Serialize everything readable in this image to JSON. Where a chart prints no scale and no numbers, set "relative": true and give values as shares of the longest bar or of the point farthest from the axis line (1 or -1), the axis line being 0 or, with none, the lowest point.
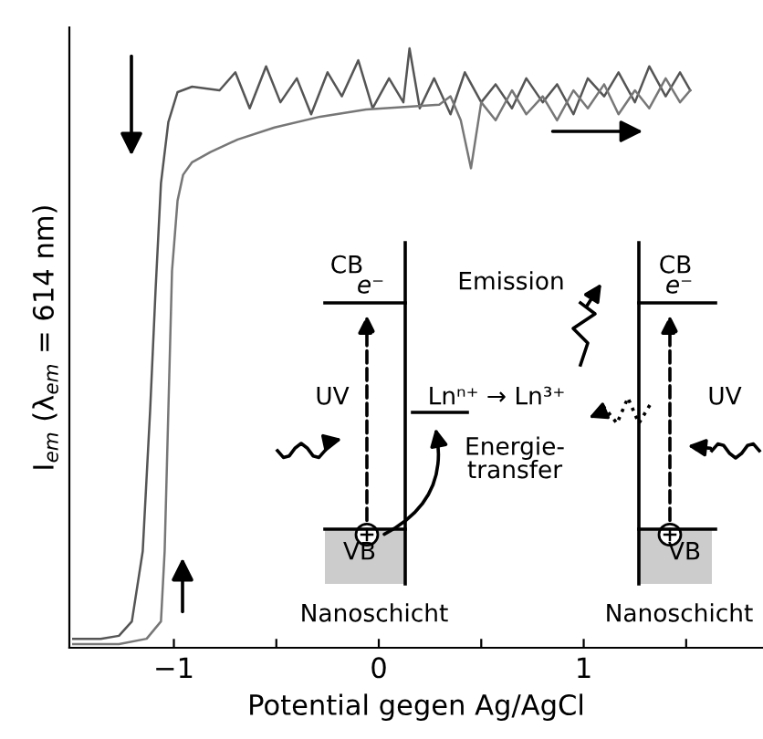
{
  "chart_data": {
    "type": "line",
    "relative": true,
    "xlabel": "Potential gegen Ag/AgCl",
    "ylabel": "I$_{em}$ (λ$_{em}$ = 614 nm)",
    "xlim": [
      -1.51,
      1.875
    ],
    "xticks": [
      {
        "value": -1,
        "label": "−1"
      },
      {
        "value": -0.5,
        "label": null
      },
      0,
      {
        "value": 0.5,
        "label": null
      },
      1,
      {
        "value": 1.5,
        "label": null
      }
    ],
    "tick_labels": "x",
    "grid": false,
    "legend": false,
    "marker": "none",
    "line_style": "solid",
    "series": [
      {
        "color": "#555555",
        "x": [
          -1.491,
          -1.357,
          -1.268,
          -1.205,
          -1.152,
          -1.116,
          -1.089,
          -1.063,
          -1.027,
          -0.982,
          -0.911,
          -0.777,
          -0.7,
          -0.63,
          -0.55,
          -0.48,
          -0.4,
          -0.33,
          -0.25,
          -0.18,
          -0.1,
          -0.03,
          0.05,
          0.12,
          0.15,
          0.2,
          0.27,
          0.35,
          0.42,
          0.5,
          0.57,
          0.65,
          0.72,
          0.8,
          0.87,
          0.95,
          1.02,
          1.1,
          1.17,
          1.25,
          1.32,
          1.4,
          1.47,
          1.52
        ],
        "values": [
          0.015,
          0.015,
          0.02,
          0.044,
          0.161,
          0.395,
          0.599,
          0.775,
          0.877,
          0.927,
          0.936,
          0.93,
          0.96,
          0.9,
          0.97,
          0.91,
          0.95,
          0.89,
          0.96,
          0.92,
          0.98,
          0.9,
          0.95,
          0.91,
          1.0,
          0.9,
          0.95,
          0.89,
          0.96,
          0.91,
          0.94,
          0.9,
          0.95,
          0.91,
          0.94,
          0.89,
          0.95,
          0.92,
          0.96,
          0.91,
          0.97,
          0.92,
          0.96,
          0.93
        ]
      },
      {
        "color": "#777777",
        "x": [
          -1.491,
          -1.268,
          -1.133,
          -1.063,
          -1.045,
          -1.027,
          -1.009,
          -0.982,
          -0.955,
          -0.911,
          -0.821,
          -0.688,
          -0.509,
          -0.286,
          -0.062,
          0.295,
          0.35,
          0.4,
          0.45,
          0.5,
          0.57,
          0.65,
          0.72,
          0.8,
          0.87,
          0.95,
          1.02,
          1.1,
          1.17,
          1.25,
          1.32,
          1.4,
          1.47,
          1.52
        ],
        "values": [
          0.006,
          0.006,
          0.015,
          0.044,
          0.161,
          0.395,
          0.629,
          0.746,
          0.789,
          0.81,
          0.827,
          0.848,
          0.868,
          0.886,
          0.898,
          0.906,
          0.92,
          0.88,
          0.8,
          0.91,
          0.88,
          0.93,
          0.89,
          0.92,
          0.88,
          0.93,
          0.9,
          0.94,
          0.89,
          0.93,
          0.9,
          0.95,
          0.91,
          0.93
        ]
      }
    ],
    "annotations": [
      "CB",
      "e⁻",
      "UV",
      "Lnⁿ⁺ → Ln³⁺",
      "Emission",
      "Energie-\ntransfer",
      "VB",
      "Nanoschicht",
      "CB",
      "e⁻",
      "UV",
      "VB",
      "Nanoschicht"
    ]
  }
}
